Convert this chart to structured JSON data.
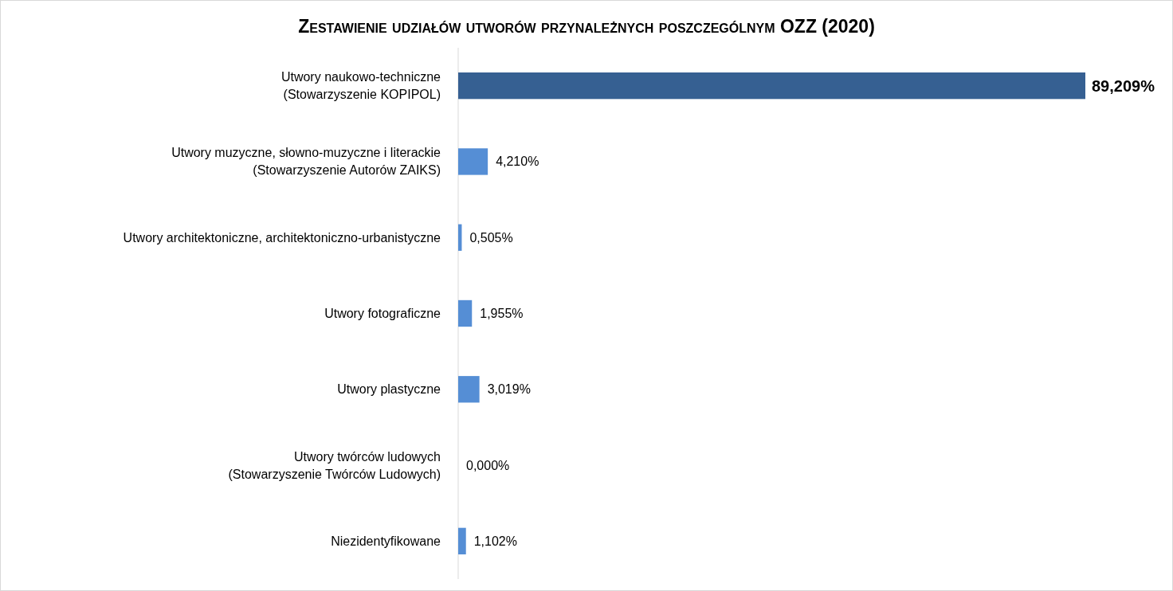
{
  "chart_data": {
    "type": "bar",
    "orientation": "horizontal",
    "title": "Zestawienie udziałów utworów przynależnych poszczególnym OZZ (2020)",
    "categories": [
      "Utwory naukowo-techniczne\n(Stowarzyszenie KOPIPOL)",
      "Utwory muzyczne, słowno-muzyczne i literackie\n(Stowarzyszenie Autorów ZAIKS)",
      "Utwory architektoniczne, architektoniczno-urbanistyczne",
      "Utwory fotograficzne",
      "Utwory plastyczne",
      "Utwory twórców ludowych\n(Stowarzyszenie Twórców Ludowych)",
      "Niezidentyfikowane"
    ],
    "values": [
      89.209,
      4.21,
      0.505,
      1.955,
      3.019,
      0,
      1.102
    ],
    "colors": [
      "#366092",
      "#558ed5",
      "#558ed5",
      "#558ed5",
      "#558ed5",
      "#558ed5",
      "#558ed5"
    ],
    "value_labels": [
      "89,209%",
      "4,210%",
      "0,505%",
      "1,955%",
      "3,019%",
      "0,000%",
      "1,102%"
    ],
    "tick_labels": "y"
  }
}
